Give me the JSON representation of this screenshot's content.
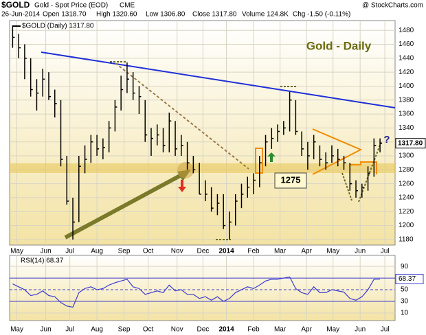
{
  "chart_data": {
    "type": "ohlc",
    "header": {
      "symbol": "$GOLD",
      "name": "Gold - Spot Price (EOD)",
      "exchange": "CME",
      "source": "@ StockCharts.com",
      "date": "26-Jun-2014",
      "open": "Open 1318.70",
      "high": "High 1320.60",
      "low": "Low 1306.80",
      "close": "Close 1317.80",
      "volume": "Volume 124.8K",
      "change": "Chg -1.50 (-0.11%)"
    },
    "legend": "$GOLD (Daily) 1317.80",
    "title": "Gold - Daily",
    "annotations": {
      "level": "1275",
      "question": "?",
      "price_tag": "1317.80"
    },
    "x": [
      0,
      1,
      2,
      3,
      4,
      5,
      6,
      7,
      8,
      9,
      10,
      11,
      12,
      13,
      14,
      15,
      16,
      17,
      18,
      19,
      20,
      21,
      22,
      23,
      24,
      25,
      26,
      27,
      28,
      29,
      30,
      31,
      32,
      33,
      34,
      35,
      36,
      37,
      38,
      39,
      40,
      41,
      42,
      43,
      44,
      45,
      46,
      47,
      48,
      49,
      50,
      51,
      52,
      53,
      54,
      55,
      56,
      57,
      58,
      59,
      60,
      61
    ],
    "high": [
      1487,
      1475,
      1460,
      1440,
      1410,
      1425,
      1420,
      1395,
      1380,
      1300,
      1240,
      1300,
      1315,
      1330,
      1330,
      1325,
      1350,
      1380,
      1415,
      1434,
      1420,
      1400,
      1380,
      1340,
      1345,
      1340,
      1362,
      1350,
      1330,
      1320,
      1300,
      1290,
      1265,
      1255,
      1245,
      1245,
      1220,
      1245,
      1260,
      1270,
      1275,
      1300,
      1330,
      1340,
      1345,
      1350,
      1392,
      1380,
      1335,
      1320,
      1330,
      1315,
      1305,
      1315,
      1310,
      1300,
      1290,
      1265,
      1260,
      1285,
      1325,
      1325
    ],
    "low": [
      1455,
      1440,
      1410,
      1385,
      1365,
      1385,
      1380,
      1355,
      1285,
      1230,
      1180,
      1205,
      1275,
      1290,
      1300,
      1295,
      1305,
      1335,
      1365,
      1390,
      1380,
      1360,
      1320,
      1300,
      1315,
      1305,
      1305,
      1300,
      1300,
      1280,
      1275,
      1245,
      1235,
      1220,
      1215,
      1195,
      1180,
      1200,
      1225,
      1240,
      1245,
      1255,
      1285,
      1310,
      1320,
      1330,
      1335,
      1330,
      1300,
      1280,
      1295,
      1285,
      1280,
      1290,
      1285,
      1280,
      1250,
      1240,
      1240,
      1250,
      1270,
      1305
    ],
    "close": [
      1470,
      1455,
      1440,
      1395,
      1390,
      1410,
      1385,
      1375,
      1295,
      1235,
      1205,
      1285,
      1295,
      1320,
      1310,
      1312,
      1340,
      1370,
      1395,
      1410,
      1390,
      1385,
      1330,
      1325,
      1330,
      1315,
      1350,
      1310,
      1315,
      1290,
      1280,
      1245,
      1245,
      1225,
      1232,
      1200,
      1205,
      1235,
      1245,
      1255,
      1265,
      1290,
      1320,
      1325,
      1335,
      1340,
      1380,
      1335,
      1310,
      1300,
      1320,
      1295,
      1290,
      1300,
      1295,
      1290,
      1260,
      1250,
      1255,
      1275,
      1315,
      1318
    ],
    "color": "#000000",
    "xlim": [
      -0.5,
      63.5
    ],
    "xticks": [
      {
        "value": 0.7,
        "label": "May"
      },
      {
        "value": 5.5,
        "label": "Jun"
      },
      {
        "value": 9.5,
        "label": "Jul"
      },
      {
        "value": 14,
        "label": "Aug"
      },
      {
        "value": 18.5,
        "label": "Sep"
      },
      {
        "value": 22.5,
        "label": "Oct"
      },
      {
        "value": 27.3,
        "label": "Nov"
      },
      {
        "value": 31.6,
        "label": "Dec"
      },
      {
        "value": 35.5,
        "label": "2014"
      },
      {
        "value": 40,
        "label": "Feb"
      },
      {
        "value": 44.4,
        "label": "Mar"
      },
      {
        "value": 48.8,
        "label": "Apr"
      },
      {
        "value": 53.2,
        "label": "May"
      },
      {
        "value": 57.7,
        "label": "Jun"
      },
      {
        "value": 61.8,
        "label": "Jul"
      }
    ],
    "ylim": [
      1172,
      1494
    ],
    "yticks": [
      1180,
      1200,
      1220,
      1240,
      1260,
      1280,
      1300,
      1320,
      1340,
      1360,
      1380,
      1400,
      1420,
      1440,
      1460,
      1480
    ],
    "grid": true,
    "rsi": {
      "name": "RSI(14) 68.37",
      "value_tag": "68.37",
      "color": "#3b3bd0",
      "values": [
        60,
        55,
        50,
        40,
        42,
        48,
        40,
        38,
        28,
        22,
        20,
        45,
        52,
        55,
        50,
        52,
        58,
        62,
        65,
        68,
        55,
        52,
        42,
        45,
        48,
        45,
        58,
        48,
        50,
        42,
        42,
        35,
        38,
        32,
        38,
        30,
        35,
        45,
        50,
        55,
        52,
        58,
        65,
        68,
        68,
        70,
        72,
        52,
        45,
        42,
        55,
        45,
        45,
        50,
        48,
        46,
        35,
        32,
        38,
        50,
        68,
        68.37
      ],
      "ylim": [
        -3,
        109
      ],
      "yticks": [
        10,
        30,
        50,
        70,
        90
      ]
    }
  }
}
